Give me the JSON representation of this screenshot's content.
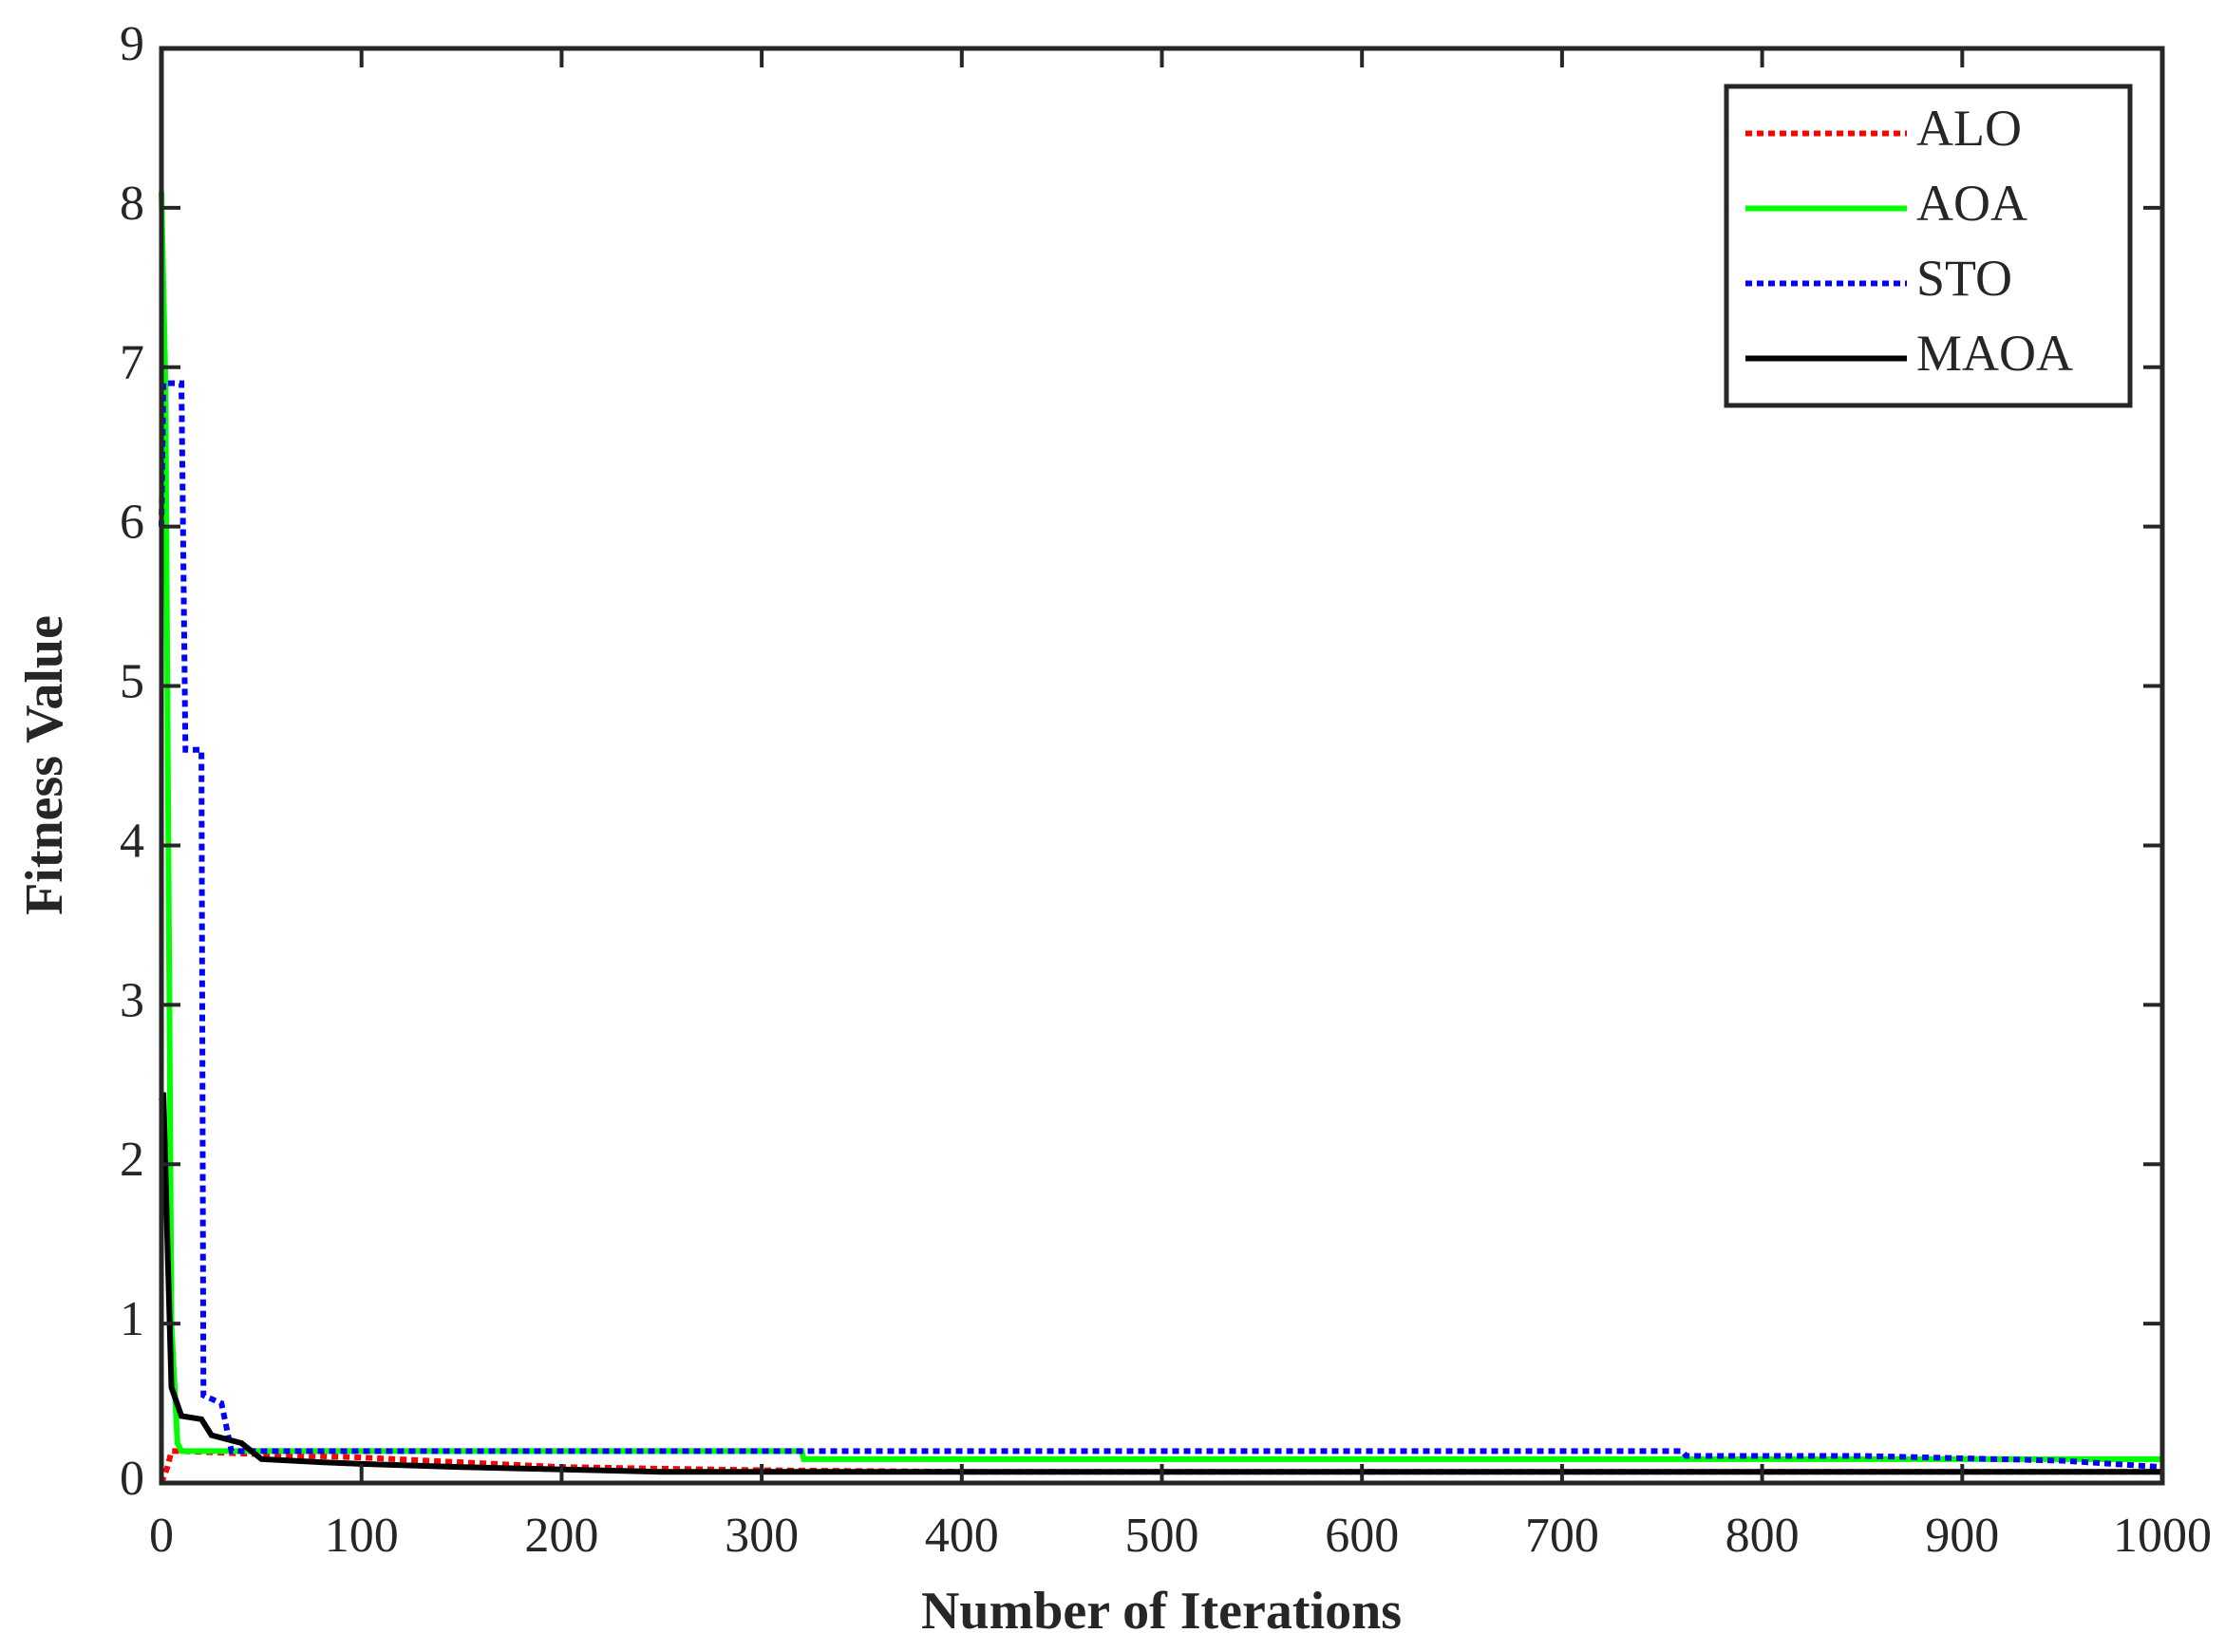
{
  "chart_data": {
    "type": "line",
    "xlabel": "Number of Iterations",
    "ylabel": "Fitness Value",
    "xlim": [
      0,
      1000
    ],
    "ylim": [
      0,
      9
    ],
    "xticks": [
      0,
      100,
      200,
      300,
      400,
      500,
      600,
      700,
      800,
      900,
      1000
    ],
    "yticks": [
      0,
      1,
      2,
      3,
      4,
      5,
      6,
      7,
      8,
      9
    ],
    "legend": "top-right",
    "series": [
      {
        "name": "ALO",
        "color": "#ff0000",
        "dash": "dotted",
        "x": [
          0,
          3,
          5,
          10,
          50,
          100,
          150,
          200,
          250,
          300,
          400,
          1000
        ],
        "values": [
          0,
          0.1,
          0.2,
          0.2,
          0.18,
          0.16,
          0.13,
          0.1,
          0.09,
          0.08,
          0.07,
          0.07
        ]
      },
      {
        "name": "AOA",
        "color": "#00ff00",
        "dash": "solid",
        "x": [
          0,
          2,
          5,
          8,
          10,
          320,
          321,
          1000
        ],
        "values": [
          8.1,
          6.9,
          1,
          0.25,
          0.2,
          0.2,
          0.15,
          0.15
        ]
      },
      {
        "name": "STO",
        "color": "#0000ff",
        "dash": "dotted",
        "x": [
          0,
          1,
          10,
          12,
          20,
          21,
          30,
          35,
          760,
          762,
          850,
          950,
          1000
        ],
        "values": [
          6,
          6.9,
          6.9,
          4.6,
          4.6,
          0.55,
          0.5,
          0.2,
          0.2,
          0.17,
          0.17,
          0.14,
          0.1
        ]
      },
      {
        "name": "MAOA",
        "color": "#000000",
        "dash": "solid",
        "x": [
          0,
          1,
          3,
          5,
          10,
          20,
          25,
          40,
          50,
          80,
          100,
          150,
          250,
          1000
        ],
        "values": [
          2.4,
          2.45,
          1.5,
          0.6,
          0.42,
          0.4,
          0.3,
          0.25,
          0.15,
          0.13,
          0.12,
          0.1,
          0.07,
          0.07
        ]
      }
    ]
  }
}
